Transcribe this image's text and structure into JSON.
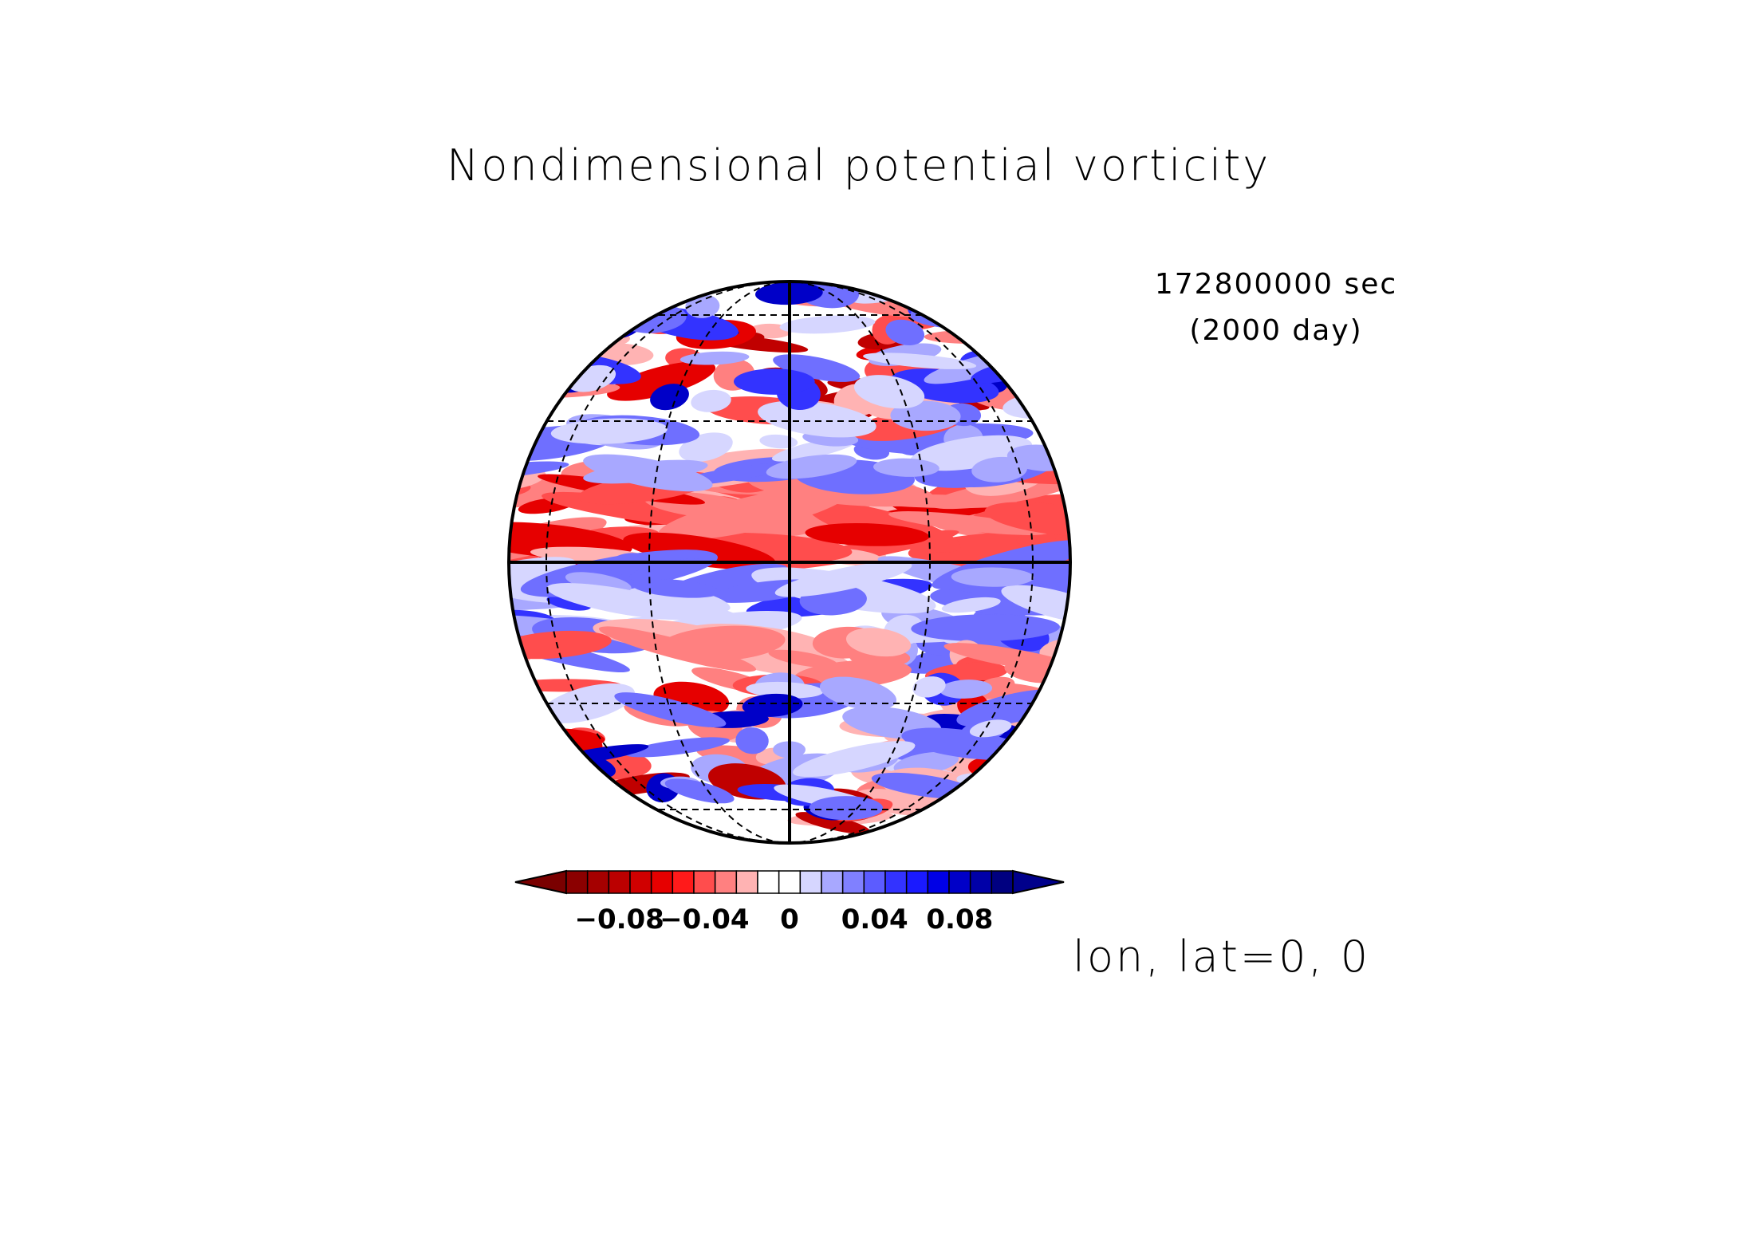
{
  "title": "Nondimensional potential vorticity",
  "time_label": "172800000 sec",
  "day_label": "(2000 day)",
  "projection_center": "lon, lat=0, 0",
  "colorbar": {
    "ticks": [
      {
        "value": -0.08,
        "label": "−0.08"
      },
      {
        "value": -0.04,
        "label": "−0.04"
      },
      {
        "value": 0,
        "label": "0"
      },
      {
        "value": 0.04,
        "label": "0.04"
      },
      {
        "value": 0.08,
        "label": "0.08"
      }
    ],
    "colors": [
      "#8b0000",
      "#a50000",
      "#bb0000",
      "#d00000",
      "#e60000",
      "#ff1a1a",
      "#ff4d4d",
      "#ff8080",
      "#ffb3b3",
      "#ffffff",
      "#ffffff",
      "#d6d6ff",
      "#a8a8ff",
      "#8080ff",
      "#5c5cff",
      "#3333ff",
      "#1a1aff",
      "#0000e6",
      "#0000c8",
      "#0000a8",
      "#000080"
    ],
    "min_color": "#7a0000",
    "max_color": "#00008b"
  },
  "colors": {
    "negative": "#d40000",
    "positive": "#1a1aff",
    "gridline": "#000000"
  }
}
